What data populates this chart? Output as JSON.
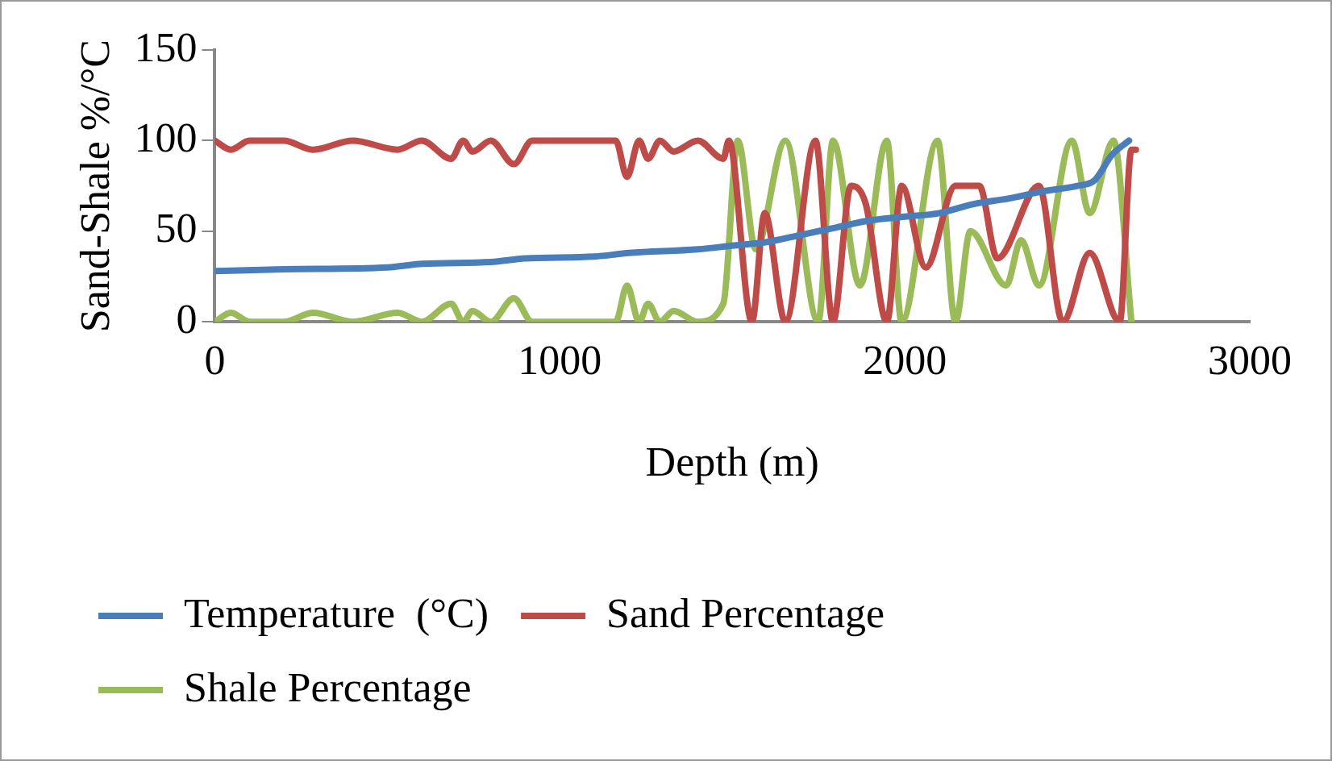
{
  "chart_data": {
    "type": "line",
    "xlabel": "Depth (m)",
    "ylabel": "Sand-Shale %/°C",
    "xlim": [
      0,
      3000
    ],
    "xticks": [
      0,
      1000,
      2000,
      3000
    ],
    "ylim": [
      0,
      150
    ],
    "yticks": [
      0,
      50,
      100,
      150
    ],
    "grid": false,
    "legend": "bottom",
    "marker": "none",
    "line_style": "solid",
    "series": [
      {
        "name": "Temperature  (°C)",
        "color": "#4a7ebb",
        "x": [
          0,
          200,
          500,
          600,
          800,
          900,
          1100,
          1200,
          1400,
          1500,
          1600,
          1700,
          1800,
          1900,
          2000,
          2100,
          2200,
          2300,
          2400,
          2500,
          2550,
          2600,
          2650
        ],
        "values": [
          28,
          29,
          30,
          32,
          33,
          35,
          36,
          38,
          40,
          42,
          44,
          48,
          52,
          56,
          58,
          60,
          65,
          68,
          72,
          75,
          78,
          92,
          100
        ]
      },
      {
        "name": "Sand Percentage",
        "color": "#be4b48",
        "x": [
          0,
          47,
          100,
          200,
          285,
          400,
          530,
          600,
          685,
          720,
          747,
          800,
          867,
          920,
          1000,
          1162,
          1195,
          1230,
          1256,
          1290,
          1330,
          1400,
          1474,
          1490,
          1557,
          1594,
          1654,
          1741,
          1792,
          1844,
          1887,
          1948,
          1991,
          2061,
          2147,
          2216,
          2268,
          2389,
          2458,
          2536,
          2623,
          2657,
          2670
        ],
        "values": [
          100,
          95,
          100,
          100,
          95,
          100,
          95,
          100,
          90,
          100,
          94,
          100,
          87,
          100,
          100,
          100,
          80,
          100,
          90,
          100,
          94,
          100,
          90,
          100,
          0,
          60,
          0,
          100,
          0,
          75,
          65,
          0,
          75,
          30,
          75,
          75,
          35,
          75,
          0,
          38,
          0,
          95,
          95
        ]
      },
      {
        "name": "Shale Percentage",
        "color": "#9bbb59",
        "x": [
          0,
          47,
          100,
          200,
          285,
          400,
          530,
          600,
          685,
          720,
          747,
          800,
          867,
          920,
          1000,
          1162,
          1195,
          1230,
          1256,
          1290,
          1330,
          1400,
          1474,
          1516,
          1568,
          1654,
          1749,
          1792,
          1870,
          1948,
          1991,
          2095,
          2147,
          2190,
          2294,
          2337,
          2389,
          2484,
          2536,
          2605,
          2657
        ],
        "values": [
          0,
          5,
          0,
          0,
          5,
          0,
          5,
          0,
          10,
          0,
          6,
          0,
          13,
          0,
          0,
          0,
          20,
          0,
          10,
          0,
          6,
          0,
          10,
          100,
          40,
          100,
          0,
          100,
          20,
          100,
          0,
          100,
          0,
          50,
          20,
          45,
          20,
          100,
          60,
          100,
          0
        ]
      }
    ]
  }
}
